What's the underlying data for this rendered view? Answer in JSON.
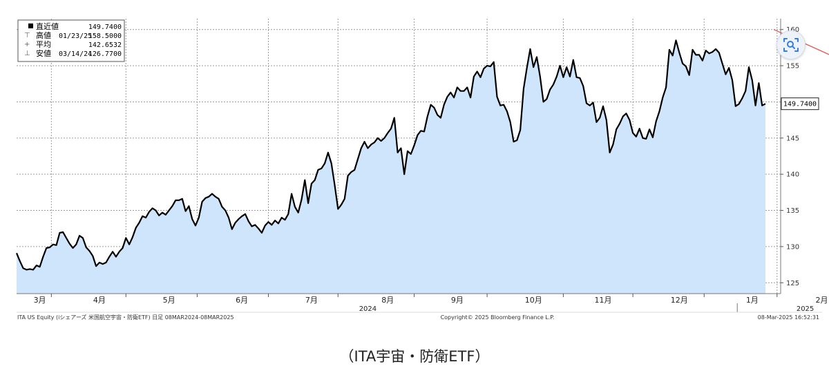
{
  "caption": "（ITA宇宙・防衛ETF）",
  "footer": {
    "left": "ITA US Equity (iシェアーズ 米国航空宇宙・防衛ETF)  日足 08MAR2024-08MAR2025",
    "center": "Copyright© 2025 Bloomberg Finance L.P.",
    "right": "08-Mar-2025 16:52:31"
  },
  "legend": {
    "rows": [
      {
        "name": "直近値",
        "date": "",
        "value": "149.7400"
      },
      {
        "name": "高値",
        "date": "01/23/25",
        "value": "158.5000"
      },
      {
        "name": "平均",
        "date": "",
        "value": "142.6532"
      },
      {
        "name": "安値",
        "date": "03/14/24",
        "value": "126.7700"
      }
    ]
  },
  "last_value_label": "149.7400",
  "icon": "scan-search-icon",
  "colors": {
    "line": "#000000",
    "area_fill": "#cfe5fb",
    "trend_arrow": "#e05a5a",
    "grid": "#9a9a9a"
  },
  "chart_data": {
    "type": "area",
    "ylim": [
      123.5,
      161.5
    ],
    "yticks": [
      125,
      130,
      135,
      140,
      145,
      150,
      155,
      160
    ],
    "xlim": [
      0,
      256
    ],
    "months": [
      {
        "label": "3月",
        "x": 7
      },
      {
        "label": "4月",
        "x": 25
      },
      {
        "label": "5月",
        "x": 46
      },
      {
        "label": "6月",
        "x": 68
      },
      {
        "label": "7月",
        "x": 89
      },
      {
        "label": "8月",
        "x": 112
      },
      {
        "label": "9月",
        "x": 133
      },
      {
        "label": "10月",
        "x": 156
      },
      {
        "label": "11月",
        "x": 177
      },
      {
        "label": "12月",
        "x": 200
      },
      {
        "label": "1月",
        "x": 222
      },
      {
        "label": "2月",
        "x": 243
      }
    ],
    "grid_x": [
      10.5,
      33,
      54.5,
      76,
      97,
      120,
      142,
      165,
      186,
      207.5,
      229.5,
      250
    ],
    "year_labels": [
      {
        "label": "2024",
        "x": 106
      },
      {
        "label": "2025",
        "x": 238
      }
    ],
    "year_separator_x": 217.5,
    "trend_arrow": {
      "from": [
        228.5,
        160.0
      ],
      "to": [
        257.5,
        154.0
      ]
    },
    "series": [
      {
        "values": [
          [
            0,
            129.1
          ],
          [
            1,
            128.0
          ],
          [
            2,
            127.0
          ],
          [
            3,
            126.8
          ],
          [
            4,
            126.9
          ],
          [
            5,
            126.8
          ],
          [
            6,
            127.4
          ],
          [
            7,
            127.2
          ],
          [
            8,
            128.6
          ],
          [
            9,
            129.8
          ],
          [
            10,
            129.9
          ],
          [
            11,
            130.3
          ],
          [
            12,
            130.2
          ],
          [
            13,
            131.9
          ],
          [
            14,
            132.0
          ],
          [
            15,
            131.2
          ],
          [
            16,
            130.4
          ],
          [
            17,
            129.8
          ],
          [
            18,
            130.3
          ],
          [
            19,
            131.5
          ],
          [
            20,
            131.2
          ],
          [
            21,
            129.9
          ],
          [
            22,
            129.4
          ],
          [
            23,
            128.7
          ],
          [
            24,
            127.3
          ],
          [
            25,
            127.8
          ],
          [
            26,
            127.6
          ],
          [
            27,
            127.8
          ],
          [
            28,
            128.6
          ],
          [
            29,
            129.3
          ],
          [
            30,
            128.6
          ],
          [
            31,
            129.3
          ],
          [
            32,
            129.8
          ],
          [
            33,
            131.2
          ],
          [
            34,
            130.3
          ],
          [
            35,
            131.3
          ],
          [
            36,
            132.6
          ],
          [
            37,
            133.3
          ],
          [
            38,
            134.2
          ],
          [
            39,
            134.0
          ],
          [
            40,
            134.8
          ],
          [
            41,
            135.3
          ],
          [
            42,
            135.0
          ],
          [
            43,
            134.3
          ],
          [
            44,
            134.7
          ],
          [
            45,
            134.4
          ],
          [
            46,
            135.0
          ],
          [
            47,
            135.6
          ],
          [
            48,
            136.4
          ],
          [
            49,
            136.4
          ],
          [
            50,
            136.6
          ],
          [
            51,
            134.9
          ],
          [
            52,
            135.6
          ],
          [
            53,
            133.8
          ],
          [
            54,
            132.9
          ],
          [
            55,
            134.0
          ],
          [
            56,
            136.2
          ],
          [
            57,
            136.7
          ],
          [
            58,
            136.9
          ],
          [
            59,
            137.3
          ],
          [
            60,
            136.9
          ],
          [
            61,
            136.6
          ],
          [
            62,
            135.5
          ],
          [
            63,
            135.0
          ],
          [
            64,
            134.0
          ],
          [
            65,
            132.4
          ],
          [
            66,
            133.3
          ],
          [
            67,
            133.8
          ],
          [
            68,
            134.2
          ],
          [
            69,
            134.5
          ],
          [
            70,
            133.5
          ],
          [
            71,
            132.8
          ],
          [
            72,
            133.0
          ],
          [
            73,
            132.5
          ],
          [
            74,
            131.9
          ],
          [
            75,
            132.9
          ],
          [
            76,
            133.4
          ],
          [
            77,
            133.0
          ],
          [
            78,
            133.6
          ],
          [
            79,
            133.2
          ],
          [
            80,
            134.0
          ],
          [
            81,
            133.7
          ],
          [
            82,
            134.5
          ],
          [
            83,
            137.3
          ],
          [
            84,
            135.5
          ],
          [
            85,
            134.7
          ],
          [
            86,
            136.5
          ],
          [
            87,
            139.2
          ],
          [
            88,
            136.0
          ],
          [
            89,
            138.7
          ],
          [
            90,
            139.2
          ],
          [
            91,
            140.6
          ],
          [
            92,
            140.8
          ],
          [
            93,
            141.5
          ],
          [
            94,
            143.0
          ],
          [
            95,
            141.5
          ],
          [
            96,
            138.5
          ],
          [
            97,
            135.2
          ],
          [
            98,
            135.8
          ],
          [
            99,
            136.6
          ],
          [
            100,
            139.8
          ],
          [
            101,
            140.3
          ],
          [
            102,
            140.6
          ],
          [
            103,
            142.1
          ],
          [
            104,
            143.6
          ],
          [
            105,
            144.5
          ],
          [
            106,
            143.6
          ],
          [
            107,
            144.1
          ],
          [
            108,
            144.4
          ],
          [
            109,
            145.0
          ],
          [
            110,
            144.6
          ],
          [
            111,
            145.0
          ],
          [
            112,
            145.7
          ],
          [
            113,
            146.3
          ],
          [
            114,
            147.8
          ],
          [
            115,
            143.0
          ],
          [
            116,
            143.6
          ],
          [
            117,
            140.0
          ],
          [
            118,
            143.2
          ],
          [
            119,
            142.8
          ],
          [
            120,
            144.0
          ],
          [
            121,
            145.4
          ],
          [
            122,
            146.0
          ],
          [
            123,
            145.9
          ],
          [
            124,
            148.0
          ],
          [
            125,
            149.6
          ],
          [
            126,
            149.2
          ],
          [
            127,
            148.2
          ],
          [
            128,
            147.8
          ],
          [
            129,
            149.6
          ],
          [
            130,
            150.7
          ],
          [
            131,
            151.3
          ],
          [
            132,
            150.6
          ],
          [
            133,
            152.0
          ],
          [
            134,
            151.5
          ],
          [
            135,
            151.5
          ],
          [
            136,
            152.0
          ],
          [
            137,
            150.6
          ],
          [
            138,
            153.5
          ],
          [
            139,
            154.2
          ],
          [
            140,
            153.4
          ],
          [
            141,
            154.6
          ],
          [
            142,
            155.0
          ],
          [
            143,
            154.9
          ],
          [
            144,
            155.5
          ],
          [
            145,
            150.7
          ],
          [
            146,
            149.5
          ],
          [
            147,
            149.6
          ],
          [
            148,
            148.7
          ],
          [
            149,
            147.2
          ],
          [
            150,
            144.5
          ],
          [
            151,
            144.7
          ],
          [
            152,
            146.1
          ],
          [
            153,
            151.8
          ],
          [
            154,
            154.7
          ],
          [
            155,
            157.3
          ],
          [
            156,
            154.8
          ],
          [
            157,
            156.2
          ],
          [
            158,
            153.5
          ],
          [
            159,
            150.0
          ],
          [
            160,
            150.4
          ],
          [
            161,
            151.7
          ],
          [
            162,
            152.4
          ],
          [
            163,
            153.5
          ],
          [
            164,
            155.0
          ],
          [
            165,
            153.4
          ],
          [
            166,
            154.8
          ],
          [
            167,
            153.5
          ],
          [
            168,
            155.8
          ],
          [
            169,
            153.4
          ],
          [
            170,
            153.3
          ],
          [
            171,
            152.2
          ],
          [
            172,
            149.8
          ],
          [
            173,
            149.5
          ],
          [
            174,
            149.9
          ],
          [
            175,
            147.2
          ],
          [
            176,
            147.8
          ],
          [
            177,
            149.4
          ],
          [
            178,
            147.5
          ],
          [
            179,
            143.0
          ],
          [
            180,
            144.1
          ],
          [
            181,
            146.2
          ],
          [
            182,
            147.0
          ],
          [
            183,
            148.0
          ],
          [
            184,
            148.4
          ],
          [
            185,
            147.5
          ],
          [
            186,
            145.7
          ],
          [
            187,
            145.2
          ],
          [
            188,
            146.3
          ],
          [
            189,
            145.0
          ],
          [
            190,
            144.9
          ],
          [
            191,
            146.2
          ],
          [
            192,
            145.1
          ],
          [
            193,
            147.3
          ],
          [
            194,
            148.7
          ],
          [
            195,
            150.6
          ],
          [
            196,
            152.0
          ],
          [
            197,
            157.2
          ],
          [
            198,
            156.4
          ],
          [
            199,
            158.5
          ],
          [
            200,
            156.8
          ],
          [
            201,
            155.3
          ],
          [
            202,
            154.9
          ],
          [
            203,
            153.7
          ],
          [
            204,
            157.2
          ],
          [
            205,
            156.5
          ],
          [
            206,
            156.5
          ],
          [
            207,
            155.7
          ],
          [
            208,
            157.1
          ],
          [
            209,
            156.7
          ],
          [
            210,
            156.9
          ],
          [
            211,
            157.3
          ],
          [
            212,
            156.8
          ],
          [
            213,
            155.3
          ],
          [
            214,
            153.8
          ],
          [
            215,
            154.7
          ],
          [
            216,
            153.0
          ],
          [
            217,
            149.4
          ],
          [
            218,
            149.7
          ],
          [
            219,
            150.5
          ],
          [
            220,
            151.5
          ],
          [
            221,
            154.8
          ],
          [
            222,
            153.0
          ],
          [
            223,
            149.5
          ],
          [
            224,
            152.6
          ],
          [
            225,
            149.5
          ],
          [
            226,
            149.74
          ]
        ]
      }
    ]
  }
}
